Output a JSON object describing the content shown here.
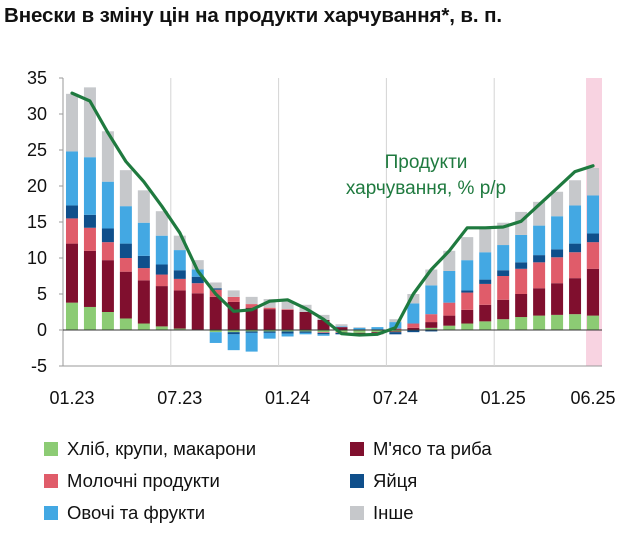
{
  "title": "Внески в зміну цін на продукти харчування*, в. п.",
  "chart_data": {
    "type": "stacked-bar-with-line",
    "title": "Внески в зміну цін на продукти харчування*, в. п.",
    "ylim": [
      -5,
      35
    ],
    "yticks": [
      "35",
      "30",
      "25",
      "20",
      "15",
      "10",
      "5",
      "0",
      "-5"
    ],
    "ytick_values": [
      35,
      30,
      25,
      20,
      15,
      10,
      5,
      0,
      -5
    ],
    "xtick_labels": [
      "01.23",
      "07.23",
      "01.24",
      "07.24",
      "01.25",
      "06.25"
    ],
    "xtick_index": [
      0,
      6,
      12,
      18,
      24,
      29
    ],
    "months": [
      "01.23",
      "02.23",
      "03.23",
      "04.23",
      "05.23",
      "06.23",
      "07.23",
      "08.23",
      "09.23",
      "10.23",
      "11.23",
      "12.23",
      "01.24",
      "02.24",
      "03.24",
      "04.24",
      "05.24",
      "06.24",
      "07.24",
      "08.24",
      "09.24",
      "10.24",
      "11.24",
      "12.24",
      "01.25",
      "02.25",
      "03.25",
      "04.25",
      "05.25",
      "06.25"
    ],
    "highlight_index": 29,
    "highlight_color": "#f8d3e1",
    "annotation": [
      "Продукти",
      "харчування, % р/р"
    ],
    "series": [
      {
        "name": "Хліб, крупи, макарони",
        "color": "#8ccb74",
        "values": [
          3.8,
          3.2,
          2.5,
          1.6,
          0.9,
          0.5,
          0.2,
          0.0,
          -0.3,
          -0.3,
          -0.2,
          -0.2,
          -0.2,
          -0.2,
          -0.3,
          -0.3,
          -0.4,
          -0.3,
          -0.2,
          0.0,
          0.3,
          0.6,
          0.9,
          1.2,
          1.5,
          1.8,
          2.0,
          2.1,
          2.2,
          2.0
        ]
      },
      {
        "name": "М'ясо та риба",
        "color": "#800f2e",
        "values": [
          8.2,
          7.8,
          7.2,
          6.5,
          6.0,
          5.6,
          5.3,
          5.1,
          4.6,
          3.9,
          3.1,
          2.9,
          2.8,
          2.5,
          1.4,
          0.4,
          -0.2,
          -0.2,
          -0.1,
          0.3,
          0.8,
          1.4,
          1.9,
          2.3,
          2.7,
          3.2,
          3.8,
          4.4,
          5.0,
          6.5
        ]
      },
      {
        "name": "Молочні продукти",
        "color": "#e05c6a",
        "values": [
          3.5,
          3.2,
          2.5,
          1.9,
          1.7,
          1.6,
          1.6,
          1.4,
          1.0,
          0.7,
          0.5,
          0.2,
          0.1,
          0.0,
          -0.1,
          -0.1,
          -0.1,
          -0.1,
          0.2,
          0.6,
          1.1,
          1.8,
          2.4,
          2.9,
          3.3,
          3.5,
          3.6,
          3.6,
          3.6,
          3.7
        ]
      },
      {
        "name": "Яйця",
        "color": "#0f4f8b",
        "values": [
          1.8,
          1.8,
          1.9,
          2.0,
          1.7,
          1.4,
          1.2,
          0.9,
          0.2,
          -0.3,
          -0.2,
          -0.2,
          -0.3,
          -0.2,
          -0.2,
          -0.2,
          -0.1,
          0.0,
          -0.3,
          -0.3,
          -0.2,
          0.0,
          0.3,
          0.6,
          0.8,
          0.9,
          1.0,
          1.1,
          1.2,
          1.2
        ]
      },
      {
        "name": "Овочі та фрукти",
        "color": "#43a8e3",
        "values": [
          7.5,
          8.0,
          6.5,
          5.2,
          4.6,
          4.0,
          2.8,
          1.0,
          -1.5,
          -2.2,
          -2.6,
          -0.8,
          -0.4,
          -0.2,
          -0.2,
          0.1,
          0.3,
          0.4,
          0.9,
          2.8,
          4.0,
          4.4,
          4.2,
          3.8,
          3.5,
          3.8,
          4.1,
          4.6,
          5.3,
          5.3
        ]
      },
      {
        "name": "Інше",
        "color": "#c6c8cb",
        "values": [
          8.0,
          9.7,
          7.0,
          5.0,
          4.5,
          3.4,
          2.0,
          1.3,
          0.8,
          0.9,
          1.0,
          1.2,
          1.1,
          1.0,
          0.7,
          0.3,
          0.1,
          0.0,
          0.4,
          1.3,
          2.2,
          2.8,
          3.2,
          3.3,
          3.1,
          3.2,
          3.3,
          3.4,
          3.5,
          3.8
        ]
      }
    ],
    "line": {
      "name": "Продукти харчування, % р/р",
      "color": "#1f7a3f",
      "values": [
        32.9,
        31.8,
        27.4,
        23.4,
        20.6,
        17.2,
        13.5,
        8.2,
        5.0,
        2.6,
        2.8,
        4.0,
        4.2,
        3.0,
        1.5,
        -0.5,
        -0.7,
        -0.6,
        0.3,
        5.0,
        8.4,
        11.0,
        14.2,
        14.2,
        14.3,
        15.1,
        17.4,
        19.7,
        22.0,
        22.8
      ]
    }
  }
}
